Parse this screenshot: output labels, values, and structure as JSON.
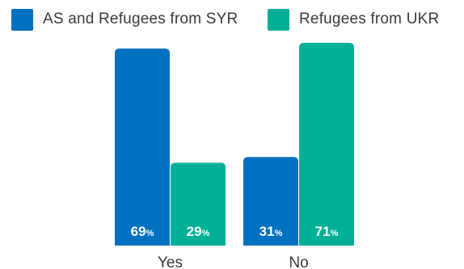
{
  "chart_data": {
    "type": "bar",
    "categories": [
      "Yes",
      "No"
    ],
    "series": [
      {
        "name": "AS and Refugees from SYR",
        "values": [
          69,
          31
        ],
        "color": "#0070C0"
      },
      {
        "name": "Refugees from UKR",
        "values": [
          29,
          71
        ],
        "color": "#00B096"
      }
    ],
    "value_unit": "%",
    "ylim": [
      0,
      71
    ],
    "legend_position": "top",
    "grid": false
  }
}
